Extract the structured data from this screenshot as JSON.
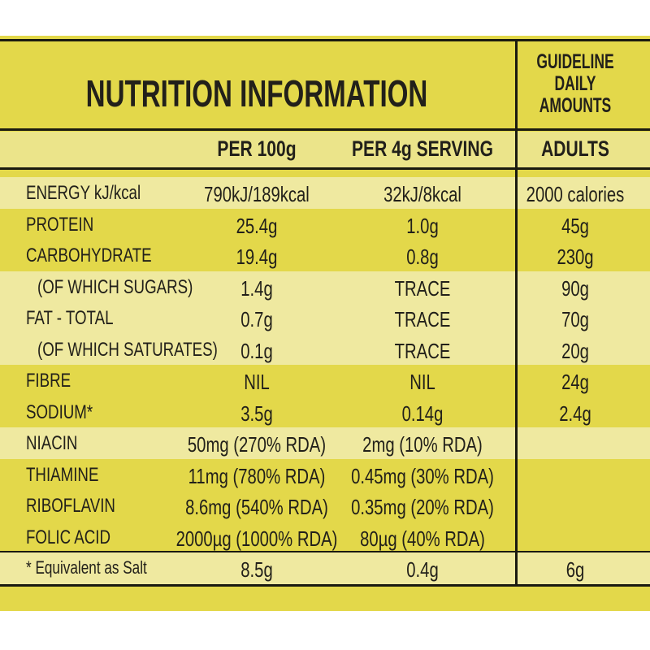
{
  "header": {
    "title": "NUTRITION INFORMATION",
    "gda": [
      "GUIDELINE",
      "DAILY",
      "AMOUNTS"
    ]
  },
  "table": {
    "columns": [
      "PER 100g",
      "PER 4g SERVING",
      "ADULTS"
    ],
    "rows": [
      [
        "ENERGY kJ/kcal",
        "790kJ/189kcal",
        "32kJ/8kcal",
        "2000 calories"
      ],
      [
        "PROTEIN",
        "25.4g",
        "1.0g",
        "45g"
      ],
      [
        "CARBOHYDRATE",
        "19.4g",
        "0.8g",
        "230g"
      ],
      [
        "(OF WHICH SUGARS)",
        "1.4g",
        "TRACE",
        "90g"
      ],
      [
        "FAT - TOTAL",
        "0.7g",
        "TRACE",
        "70g"
      ],
      [
        "(OF WHICH SATURATES)",
        "0.1g",
        "TRACE",
        "20g"
      ],
      [
        "FIBRE",
        "NIL",
        "NIL",
        "24g"
      ],
      [
        "SODIUM*",
        "3.5g",
        "0.14g",
        "2.4g"
      ],
      [
        "NIACIN",
        "50mg (270% RDA)",
        "2mg (10% RDA)",
        null
      ],
      [
        "THIAMINE",
        "11mg (780% RDA)",
        "0.45mg (30% RDA)",
        null
      ],
      [
        "RIBOFLAVIN",
        "8.6mg (540% RDA)",
        "0.35mg (20% RDA)",
        null
      ],
      [
        "FOLIC ACID",
        "2000µg (1000% RDA)",
        "80µg (40% RDA)",
        null
      ],
      [
        "* Equivalent as Salt",
        "8.5g",
        "0.4g",
        "6g"
      ]
    ]
  }
}
